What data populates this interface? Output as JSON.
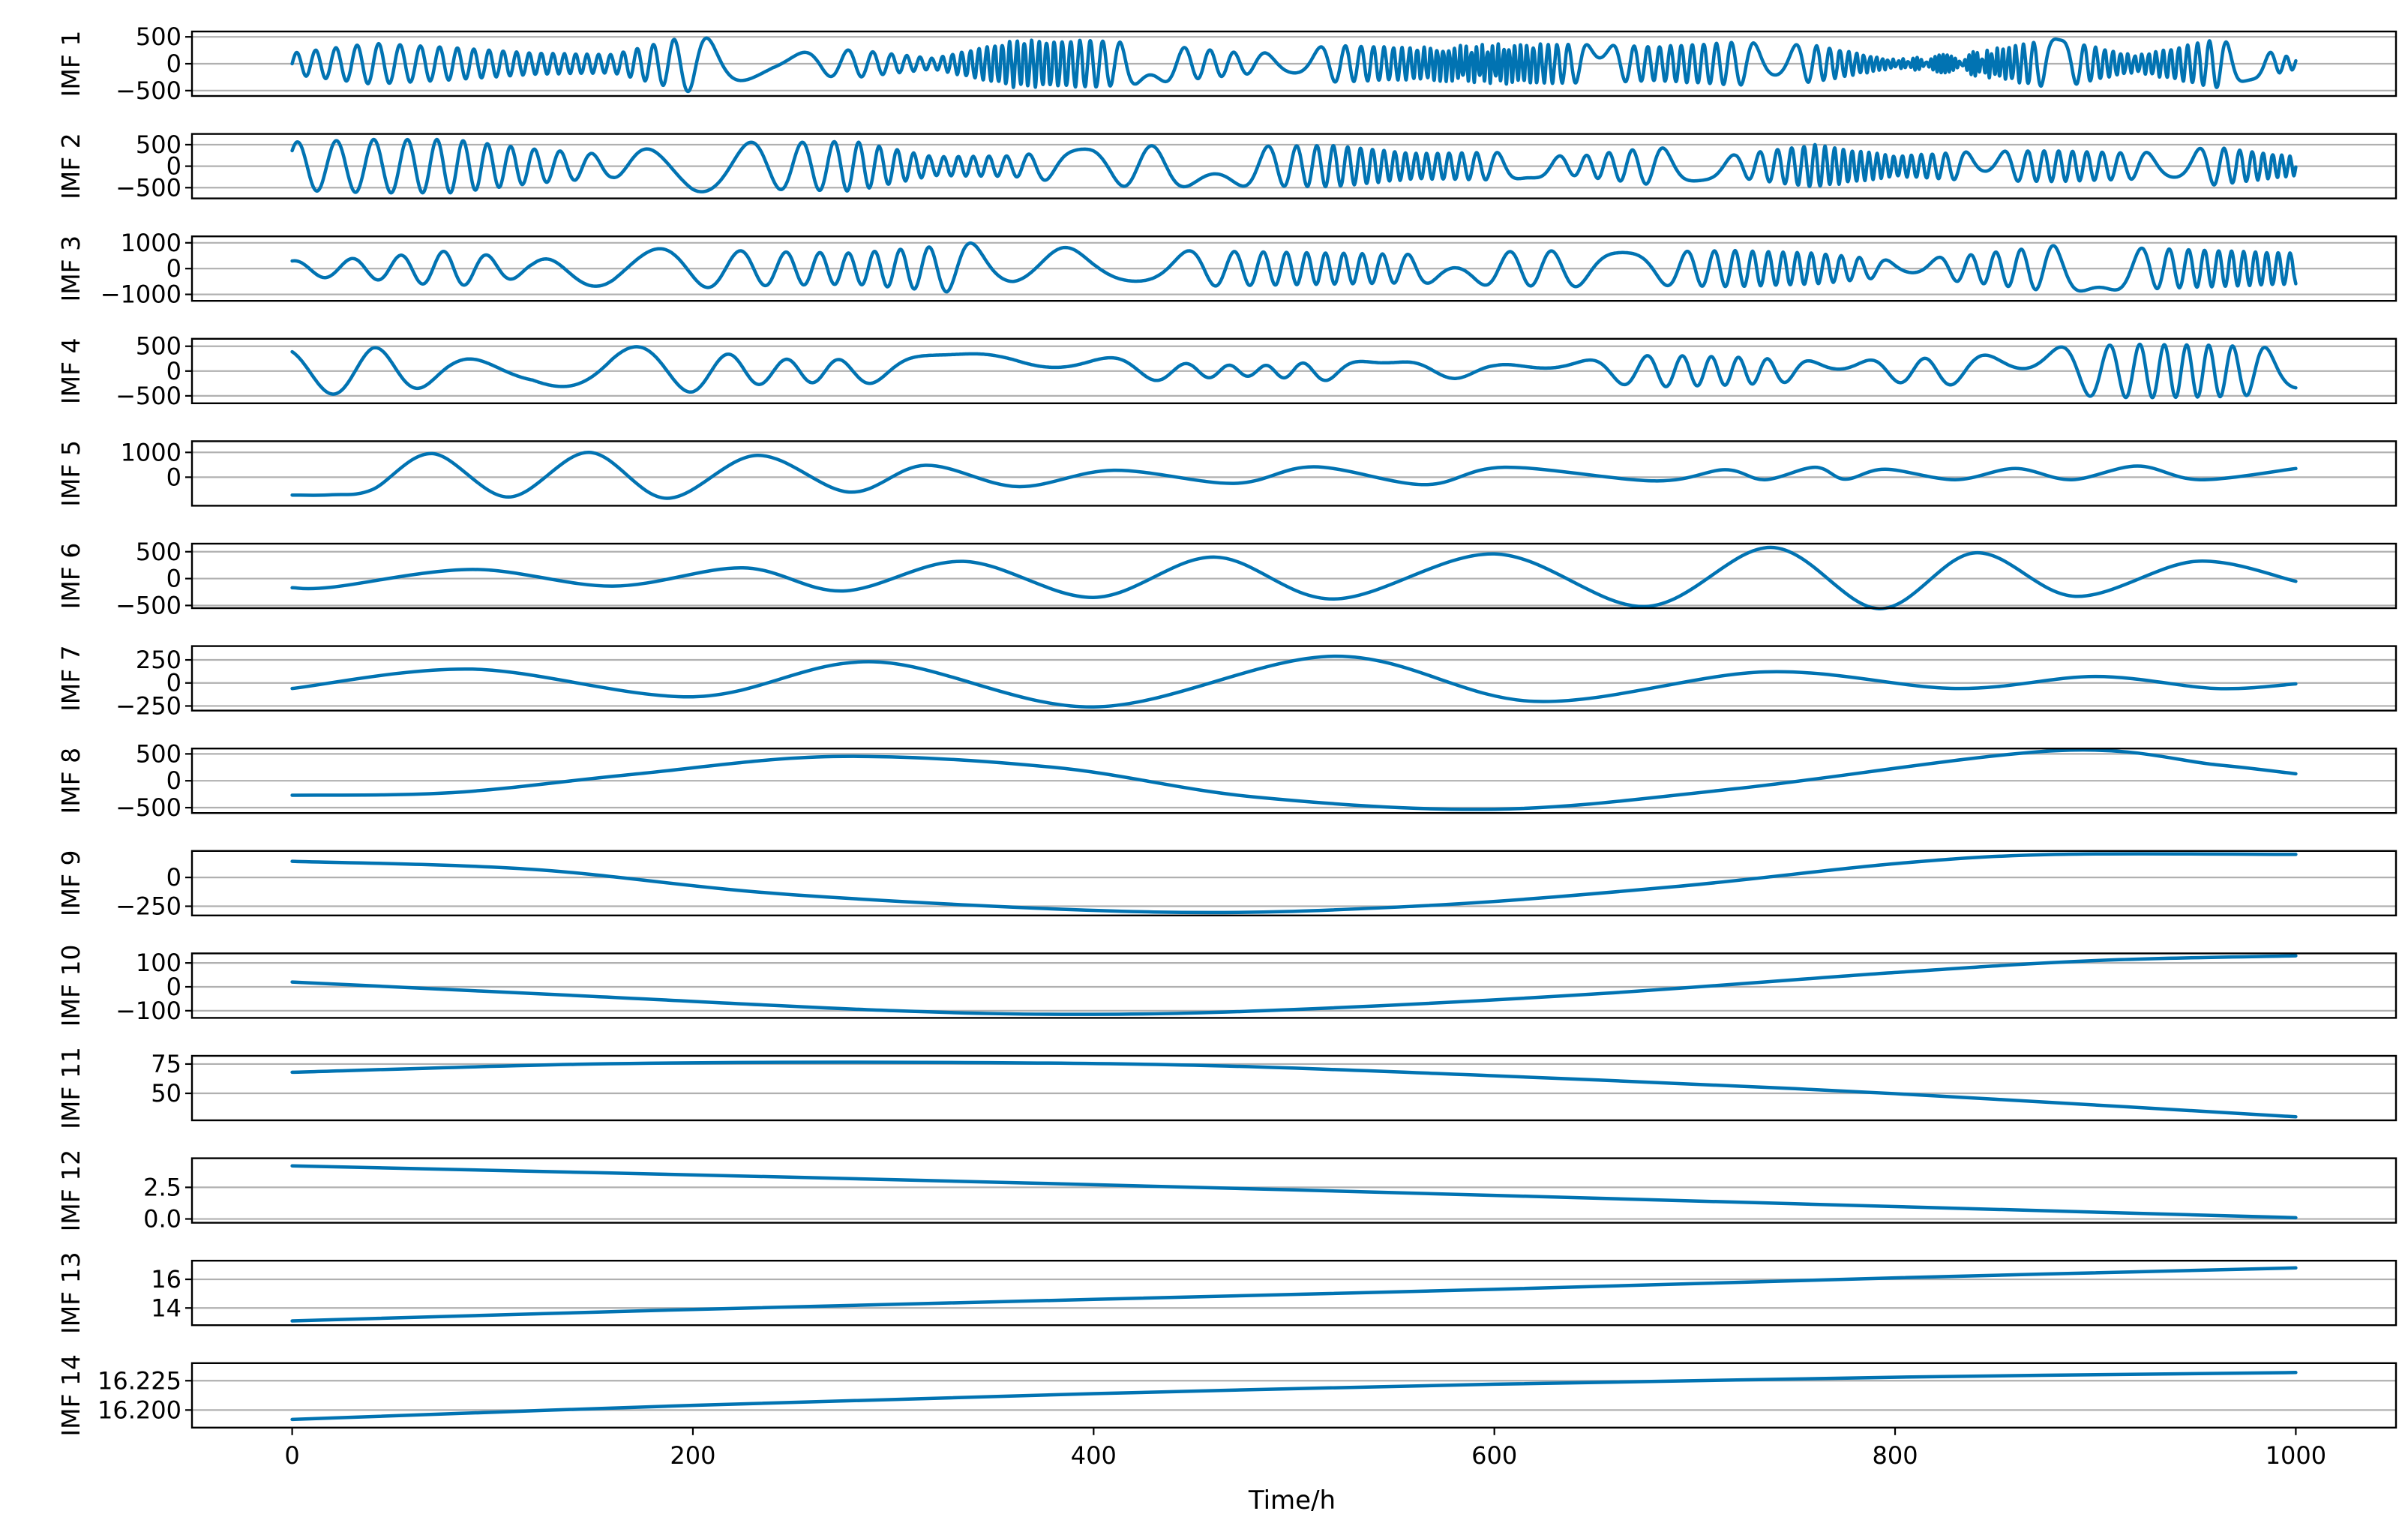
{
  "chart_data": {
    "type": "line",
    "layout": "stacked-subplots",
    "xlabel": "Time/h",
    "xlim": [
      -50,
      1050
    ],
    "xticks": [
      0,
      200,
      400,
      600,
      800,
      1000
    ],
    "grid": "horizontal",
    "line_color": "#0173b2",
    "panels": [
      {
        "ylabel": "IMF 1",
        "ylim": [
          -600,
          600
        ],
        "yticks": [
          500,
          0,
          -500
        ],
        "ytick_labels": [
          "500",
          "0",
          "−500"
        ],
        "kind": "osc",
        "x": [
          0,
          40,
          80,
          120,
          160,
          200,
          240,
          280,
          320,
          360,
          400,
          440,
          480,
          520,
          560,
          600,
          640,
          680,
          720,
          760,
          800,
          840,
          880,
          920,
          960,
          1000
        ],
        "amp": [
          200,
          380,
          300,
          200,
          170,
          540,
          180,
          260,
          100,
          440,
          440,
          320,
          180,
          340,
          300,
          380,
          360,
          320,
          400,
          340,
          80,
          230,
          460,
          160,
          450,
          100
        ],
        "period": 9
      },
      {
        "ylabel": "IMF 2",
        "ylim": [
          -750,
          750
        ],
        "yticks": [
          500,
          0,
          -500
        ],
        "ytick_labels": [
          "500",
          "0",
          "−500"
        ],
        "kind": "osc",
        "x": [
          0,
          40,
          80,
          120,
          160,
          200,
          240,
          280,
          320,
          360,
          400,
          440,
          480,
          520,
          560,
          600,
          640,
          680,
          720,
          760,
          800,
          840,
          880,
          920,
          960,
          1000
        ],
        "amp": [
          560,
          620,
          620,
          400,
          260,
          600,
          540,
          580,
          220,
          240,
          460,
          480,
          460,
          480,
          300,
          320,
          220,
          440,
          260,
          500,
          240,
          340,
          360,
          300,
          440,
          220
        ],
        "period": 17
      },
      {
        "ylabel": "IMF 3",
        "ylim": [
          -1250,
          1250
        ],
        "yticks": [
          1000,
          0,
          -1000
        ],
        "ytick_labels": [
          "1000",
          "0",
          "−1000"
        ],
        "kind": "osc",
        "x": [
          0,
          40,
          80,
          120,
          160,
          200,
          240,
          280,
          320,
          360,
          400,
          440,
          480,
          520,
          560,
          600,
          640,
          680,
          720,
          760,
          800,
          840,
          880,
          920,
          960,
          1000
        ],
        "amp": [
          300,
          420,
          700,
          300,
          800,
          750,
          650,
          600,
          850,
          1150,
          650,
          700,
          650,
          600,
          550,
          650,
          700,
          650,
          700,
          600,
          300,
          550,
          900,
          800,
          700,
          600
        ],
        "period": 28
      },
      {
        "ylabel": "IMF 4",
        "ylim": [
          -650,
          650
        ],
        "yticks": [
          500,
          0,
          -500
        ],
        "ytick_labels": [
          "500",
          "0",
          "−500"
        ],
        "kind": "osc",
        "x": [
          0,
          40,
          80,
          120,
          160,
          200,
          240,
          280,
          320,
          360,
          400,
          440,
          480,
          520,
          560,
          600,
          640,
          680,
          720,
          760,
          800,
          840,
          880,
          920,
          960,
          1000
        ],
        "amp": [
          450,
          480,
          250,
          220,
          520,
          420,
          240,
          230,
          320,
          380,
          300,
          160,
          100,
          200,
          180,
          120,
          200,
          320,
          280,
          200,
          230,
          300,
          480,
          540,
          520,
          450
        ],
        "period": 52
      },
      {
        "ylabel": "IMF 5",
        "ylim": [
          -1150,
          1450
        ],
        "yticks": [
          1000,
          0
        ],
        "ytick_labels": [
          "1000",
          "0"
        ],
        "kind": "pts",
        "x": [
          0,
          20,
          40,
          70,
          108,
          148,
          187,
          232,
          278,
          316,
          362,
          410,
          470,
          510,
          565,
          605,
          680,
          715,
          735,
          760,
          775,
          795,
          830,
          860,
          888,
          921,
          952,
          1000
        ],
        "y": [
          -720,
          -710,
          -500,
          950,
          -800,
          1000,
          -850,
          880,
          -600,
          480,
          -380,
          280,
          -250,
          420,
          -300,
          400,
          -150,
          300,
          -100,
          400,
          -80,
          320,
          -100,
          350,
          -100,
          450,
          -100,
          350
        ]
      },
      {
        "ylabel": "IMF 6",
        "ylim": [
          -550,
          650
        ],
        "yticks": [
          500,
          0,
          -500
        ],
        "ytick_labels": [
          "500",
          "0",
          "−500"
        ],
        "kind": "pts",
        "x": [
          0,
          20,
          90,
          160,
          225,
          275,
          335,
          400,
          460,
          520,
          600,
          675,
          738,
          792,
          840,
          890,
          950,
          1000
        ],
        "y": [
          -170,
          -160,
          170,
          -140,
          200,
          -230,
          320,
          -350,
          400,
          -380,
          460,
          -520,
          580,
          -560,
          480,
          -330,
          320,
          -50
        ]
      },
      {
        "ylabel": "IMF 7",
        "ylim": [
          -300,
          400
        ],
        "yticks": [
          250,
          0,
          -250
        ],
        "ytick_labels": [
          "250",
          "0",
          "−250"
        ],
        "kind": "pts",
        "x": [
          0,
          90,
          200,
          290,
          400,
          520,
          620,
          735,
          830,
          900,
          960,
          1000
        ],
        "y": [
          -60,
          150,
          -150,
          230,
          -260,
          290,
          -200,
          120,
          -60,
          70,
          -60,
          -10
        ]
      },
      {
        "ylabel": "IMF 8",
        "ylim": [
          -600,
          600
        ],
        "yticks": [
          500,
          0,
          -500
        ],
        "ytick_labels": [
          "500",
          "0",
          "−500"
        ],
        "kind": "pts",
        "x": [
          0,
          80,
          170,
          270,
          380,
          480,
          600,
          720,
          880,
          960,
          1000
        ],
        "y": [
          -270,
          -220,
          120,
          450,
          250,
          -300,
          -530,
          -150,
          560,
          300,
          130
        ]
      },
      {
        "ylabel": "IMF 9",
        "ylim": [
          -330,
          230
        ],
        "yticks": [
          0,
          -250
        ],
        "ytick_labels": [
          "0",
          "−250"
        ],
        "kind": "pts",
        "x": [
          0,
          120,
          250,
          430,
          560,
          690,
          800,
          880,
          1000
        ],
        "y": [
          140,
          70,
          -150,
          -300,
          -250,
          -80,
          120,
          200,
          200
        ]
      },
      {
        "ylabel": "IMF 10",
        "ylim": [
          -130,
          140
        ],
        "yticks": [
          100,
          0,
          -100
        ],
        "ytick_labels": [
          "100",
          "0",
          "−100"
        ],
        "kind": "pts",
        "x": [
          0,
          150,
          300,
          400,
          500,
          650,
          800,
          900,
          1000
        ],
        "y": [
          20,
          -40,
          -100,
          -115,
          -95,
          -30,
          60,
          110,
          130
        ]
      },
      {
        "ylabel": "IMF 11",
        "ylim": [
          27,
          82
        ],
        "yticks": [
          75,
          50
        ],
        "ytick_labels": [
          "75",
          "50"
        ],
        "kind": "pts",
        "x": [
          0,
          150,
          300,
          450,
          600,
          750,
          850,
          1000
        ],
        "y": [
          68,
          75,
          76.5,
          74,
          65,
          54,
          45,
          30
        ]
      },
      {
        "ylabel": "IMF 12",
        "ylim": [
          -0.3,
          4.8
        ],
        "yticks": [
          2.5,
          0.0
        ],
        "ytick_labels": [
          "2.5",
          "0.0"
        ],
        "kind": "pts",
        "x": [
          0,
          250,
          500,
          750,
          1000
        ],
        "y": [
          4.2,
          3.3,
          2.3,
          1.2,
          0.1
        ]
      },
      {
        "ylabel": "IMF 13",
        "ylim": [
          12.8,
          17.3
        ],
        "yticks": [
          16,
          14
        ],
        "ytick_labels": [
          "16",
          "14"
        ],
        "kind": "pts",
        "x": [
          0,
          200,
          400,
          600,
          800,
          1000
        ],
        "y": [
          13.1,
          13.9,
          14.6,
          15.3,
          16.1,
          16.8
        ]
      },
      {
        "ylabel": "IMF 14",
        "ylim": [
          16.185,
          16.24
        ],
        "yticks": [
          16.225,
          16.2
        ],
        "ytick_labels": [
          "16.225",
          "16.200"
        ],
        "kind": "pts",
        "x": [
          0,
          200,
          400,
          600,
          800,
          1000
        ],
        "y": [
          16.192,
          16.204,
          16.214,
          16.222,
          16.228,
          16.232
        ]
      }
    ]
  }
}
